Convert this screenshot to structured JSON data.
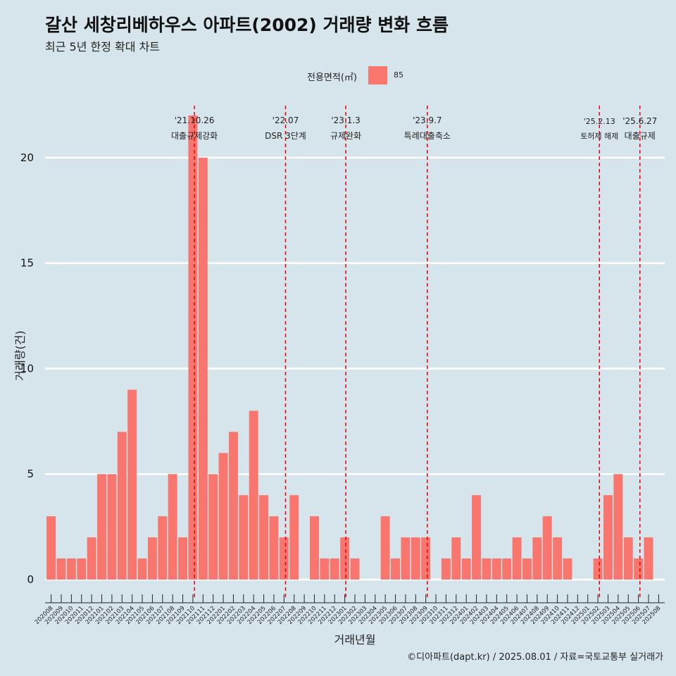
{
  "title": "갈산 세창리베하우스 아파트(2002) 거래량 변화 흐름",
  "subtitle": "최근 5년 한정 확대 차트",
  "legend": {
    "title": "전용면적(㎡)",
    "label": "85",
    "color": "#f8766d"
  },
  "caption": "©디아파트(dapt.kr) / 2025.08.01 / 자료=국토교통부 실거래가",
  "chart_data": {
    "type": "bar",
    "xlabel": "거래년월",
    "ylabel": "거래량(건)",
    "ylim": [
      -0.9,
      22.8
    ],
    "yticks": [
      0,
      5,
      10,
      15,
      20
    ],
    "grid": true,
    "legend_position": "top",
    "categories": [
      "202008",
      "202009",
      "202010",
      "202011",
      "202012",
      "202101",
      "202102",
      "202103",
      "202104",
      "202105",
      "202106",
      "202107",
      "202108",
      "202109",
      "202110",
      "202111",
      "202112",
      "202201",
      "202202",
      "202203",
      "202204",
      "202205",
      "202206",
      "202207",
      "202208",
      "202209",
      "202210",
      "202211",
      "202212",
      "202301",
      "202302",
      "202303",
      "202304",
      "202305",
      "202306",
      "202307",
      "202308",
      "202309",
      "202310",
      "202311",
      "202312",
      "202401",
      "202402",
      "202403",
      "202404",
      "202405",
      "202406",
      "202407",
      "202408",
      "202409",
      "202410",
      "202411",
      "202412",
      "202501",
      "202502",
      "202503",
      "202504",
      "202505",
      "202506",
      "202507",
      "202508"
    ],
    "series": [
      {
        "name": "85",
        "color": "#f8766d",
        "values": [
          3,
          1,
          1,
          1,
          2,
          5,
          5,
          7,
          9,
          1,
          2,
          3,
          5,
          2,
          22,
          20,
          5,
          6,
          7,
          4,
          8,
          4,
          3,
          2,
          4,
          0,
          3,
          1,
          1,
          2,
          1,
          0,
          0,
          3,
          1,
          2,
          2,
          2,
          0,
          1,
          2,
          1,
          4,
          1,
          1,
          1,
          2,
          1,
          2,
          3,
          2,
          1,
          0,
          0,
          1,
          4,
          5,
          2,
          1,
          2,
          0
        ]
      }
    ],
    "annotations": [
      {
        "date": "'21.10.26",
        "label": "대출규제강화",
        "x": "202110",
        "pos": 14.15
      },
      {
        "date": "'22.07",
        "label": "DSR 3단계",
        "x": "202207",
        "pos": 23.15
      },
      {
        "date": "'23.1.3",
        "label": "규제완화",
        "x": "202301",
        "pos": 29.1
      },
      {
        "date": "'23.9.7",
        "label": "특례대출축소",
        "x": "202309",
        "pos": 37.15
      },
      {
        "date": "'25.2.13",
        "label": "토허제 해제",
        "x": "202502",
        "pos": 54.15
      },
      {
        "date": "'25.6.27",
        "label": "대출규제",
        "x": "202506",
        "pos": 58.15
      }
    ]
  }
}
